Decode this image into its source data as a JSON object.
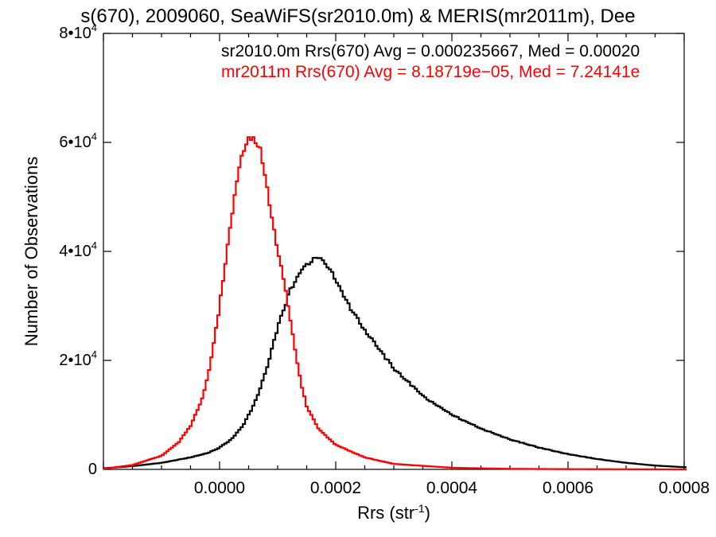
{
  "chart_data": {
    "type": "line",
    "title": "s(670), 2009060, SeaWiFS(sr2010.0m) & MERIS(mr2011m), Dee",
    "xlabel": "Rrs (str",
    "xlabel_exp": "-1",
    "xlabel_close": ")",
    "ylabel": "Number of Observations",
    "xlim": [
      -0.0002,
      0.0008
    ],
    "ylim": [
      0,
      80000
    ],
    "grid": false,
    "x_ticks": [
      {
        "value": 0.0,
        "label": "0.0000"
      },
      {
        "value": 0.0002,
        "label": "0.0002"
      },
      {
        "value": 0.0004,
        "label": "0.0004"
      },
      {
        "value": 0.0006,
        "label": "0.0006"
      },
      {
        "value": 0.0008,
        "label": "0.0008"
      }
    ],
    "y_ticks": [
      {
        "value": 0,
        "mant": "0",
        "exp": ""
      },
      {
        "value": 20000,
        "mant": "2•10",
        "exp": "4"
      },
      {
        "value": 40000,
        "mant": "4•10",
        "exp": "4"
      },
      {
        "value": 60000,
        "mant": "6•10",
        "exp": "4"
      },
      {
        "value": 80000,
        "mant": "8•10",
        "exp": "4"
      }
    ],
    "annotations": [
      {
        "text": "sr2010.0m Rrs(670) Avg = 0.000235667, Med = 0.00020",
        "color": "#000000"
      },
      {
        "text": "mr2011m Rrs(670) Avg = 8.18719e−05, Med = 7.24141e",
        "color": "#ff0000"
      }
    ],
    "series": [
      {
        "color": "#000000",
        "x": [
          -0.0002,
          -0.00015,
          -0.0001,
          -5e-05,
          -2e-05,
          0.0,
          2e-05,
          4e-05,
          6e-05,
          8e-05,
          0.0001,
          0.00012,
          0.00014,
          0.00015,
          0.00016,
          0.00017,
          0.00018,
          0.0002,
          0.00022,
          0.00025,
          0.0003,
          0.00035,
          0.0004,
          0.00045,
          0.0005,
          0.00055,
          0.0006,
          0.00065,
          0.0007,
          0.00075,
          0.0008
        ],
        "y": [
          200,
          600,
          1200,
          2200,
          3000,
          4000,
          5500,
          8000,
          12000,
          18000,
          26000,
          32500,
          36500,
          37500,
          38500,
          38800,
          38000,
          35000,
          30500,
          25500,
          18500,
          13500,
          10000,
          7500,
          5500,
          4000,
          2800,
          1900,
          1200,
          700,
          400
        ]
      },
      {
        "color": "#ff0000",
        "x": [
          -0.0002,
          -0.00015,
          -0.0001,
          -7e-05,
          -5e-05,
          -3e-05,
          -2e-05,
          -1e-05,
          0.0,
          1e-05,
          2e-05,
          3e-05,
          4e-05,
          5e-05,
          6e-05,
          7e-05,
          8e-05,
          9e-05,
          0.0001,
          0.00011,
          0.00012,
          0.00013,
          0.00014,
          0.00015,
          0.00017,
          0.0002,
          0.00025,
          0.0003,
          0.0004,
          0.0005,
          0.0006,
          0.0008
        ],
        "y": [
          100,
          800,
          2500,
          5000,
          8000,
          13000,
          17000,
          23000,
          30000,
          38000,
          46000,
          53000,
          58000,
          60500,
          61000,
          59000,
          53000,
          46000,
          40000,
          35000,
          29000,
          22000,
          16000,
          11500,
          7500,
          4500,
          2200,
          1000,
          300,
          100,
          50,
          0
        ]
      }
    ]
  }
}
